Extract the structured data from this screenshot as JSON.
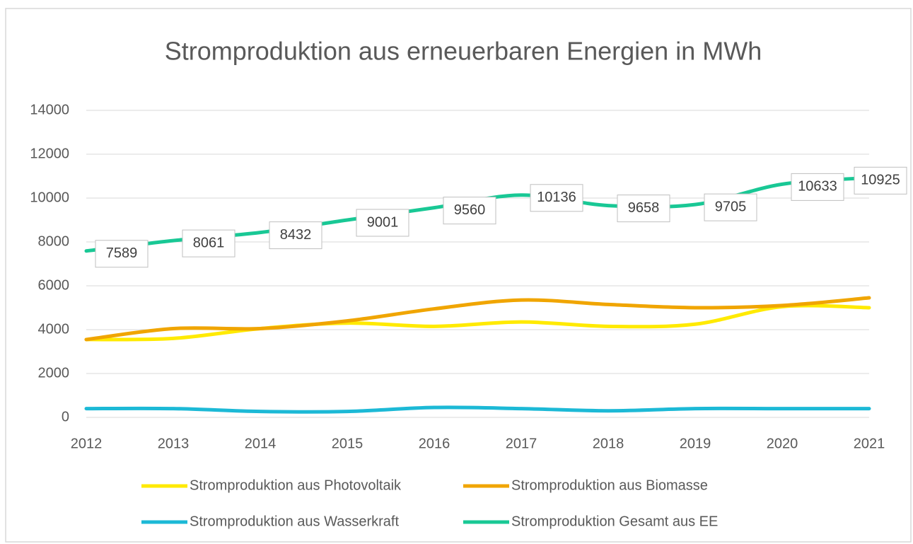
{
  "chart_data": {
    "type": "line",
    "title": "Stromproduktion aus erneuerbaren Energien in MWh",
    "categories": [
      "2012",
      "2013",
      "2014",
      "2015",
      "2016",
      "2017",
      "2018",
      "2019",
      "2020",
      "2021"
    ],
    "series": [
      {
        "name": "Stromproduktion aus Photovoltaik",
        "color": "#ffea00",
        "values": [
          3550,
          3600,
          4050,
          4300,
          4150,
          4350,
          4150,
          4250,
          5050,
          5000
        ]
      },
      {
        "name": "Stromproduktion aus Biomasse",
        "color": "#f0a500",
        "values": [
          3550,
          4050,
          4050,
          4400,
          4950,
          5350,
          5150,
          5000,
          5100,
          5450
        ]
      },
      {
        "name": "Stromproduktion aus Wasserkraft",
        "color": "#1cb9d6",
        "values": [
          400,
          400,
          270,
          270,
          450,
          400,
          300,
          400,
          400,
          400
        ]
      },
      {
        "name": "Stromproduktion Gesamt aus EE",
        "color": "#19c895",
        "values": [
          7589,
          8061,
          8432,
          9001,
          9560,
          10136,
          9658,
          9705,
          10633,
          10925
        ],
        "data_labels": true
      }
    ],
    "ylim": [
      0,
      14000
    ],
    "yticks": [
      0,
      2000,
      4000,
      6000,
      8000,
      10000,
      12000,
      14000
    ],
    "grid": true
  }
}
